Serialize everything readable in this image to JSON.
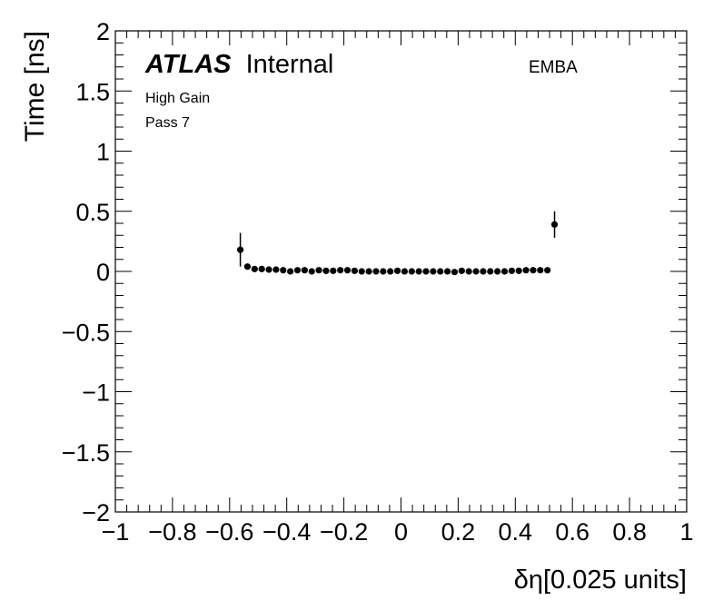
{
  "chart_data": {
    "type": "scatter",
    "ylabel": "Time [ns]",
    "xlabel": "δη[0.025 units]",
    "xlim": [
      -1,
      1
    ],
    "ylim": [
      -2,
      2
    ],
    "x_ticks": [
      "−1",
      "−0.8",
      "−0.6",
      "−0.4",
      "−0.2",
      "0",
      "0.2",
      "0.4",
      "0.6",
      "0.8",
      "1"
    ],
    "y_ticks": [
      "−2",
      "−1.5",
      "−1",
      "−0.5",
      "0",
      "0.5",
      "1",
      "1.5",
      "2"
    ],
    "labels": {
      "atlas": "ATLAS",
      "atlas_status": "Internal",
      "partition": "EMBA",
      "gain": "High Gain",
      "pass": "Pass 7"
    },
    "grid": false,
    "legend": "none",
    "marker_color": "#000000",
    "points": [
      {
        "x": -0.5625,
        "y": 0.18,
        "err": 0.14
      },
      {
        "x": -0.5375,
        "y": 0.04,
        "err": 0.015
      },
      {
        "x": -0.5125,
        "y": 0.02,
        "err": 0.01
      },
      {
        "x": -0.4875,
        "y": 0.02,
        "err": 0.008
      },
      {
        "x": -0.4625,
        "y": 0.015,
        "err": 0.006
      },
      {
        "x": -0.4375,
        "y": 0.015,
        "err": 0.005
      },
      {
        "x": -0.4125,
        "y": 0.01,
        "err": 0.005
      },
      {
        "x": -0.3875,
        "y": 0.0,
        "err": 0.005
      },
      {
        "x": -0.3625,
        "y": 0.01,
        "err": 0.005
      },
      {
        "x": -0.3375,
        "y": 0.01,
        "err": 0.005
      },
      {
        "x": -0.3125,
        "y": 0.0,
        "err": 0.005
      },
      {
        "x": -0.2875,
        "y": 0.01,
        "err": 0.005
      },
      {
        "x": -0.2625,
        "y": 0.005,
        "err": 0.005
      },
      {
        "x": -0.2375,
        "y": 0.005,
        "err": 0.005
      },
      {
        "x": -0.2125,
        "y": 0.01,
        "err": 0.005
      },
      {
        "x": -0.1875,
        "y": 0.01,
        "err": 0.005
      },
      {
        "x": -0.1625,
        "y": 0.005,
        "err": 0.005
      },
      {
        "x": -0.1375,
        "y": 0.0,
        "err": 0.005
      },
      {
        "x": -0.1125,
        "y": 0.0,
        "err": 0.005
      },
      {
        "x": -0.0875,
        "y": 0.0,
        "err": 0.005
      },
      {
        "x": -0.0625,
        "y": 0.0,
        "err": 0.005
      },
      {
        "x": -0.0375,
        "y": 0.0,
        "err": 0.005
      },
      {
        "x": -0.0125,
        "y": 0.005,
        "err": 0.005
      },
      {
        "x": 0.0125,
        "y": 0.0,
        "err": 0.005
      },
      {
        "x": 0.0375,
        "y": 0.0,
        "err": 0.005
      },
      {
        "x": 0.0625,
        "y": 0.0,
        "err": 0.005
      },
      {
        "x": 0.0875,
        "y": 0.0,
        "err": 0.005
      },
      {
        "x": 0.1125,
        "y": 0.0,
        "err": 0.005
      },
      {
        "x": 0.1375,
        "y": 0.0,
        "err": 0.005
      },
      {
        "x": 0.1625,
        "y": 0.0,
        "err": 0.005
      },
      {
        "x": 0.1875,
        "y": -0.005,
        "err": 0.005
      },
      {
        "x": 0.2125,
        "y": 0.005,
        "err": 0.005
      },
      {
        "x": 0.2375,
        "y": 0.0,
        "err": 0.005
      },
      {
        "x": 0.2625,
        "y": 0.0,
        "err": 0.005
      },
      {
        "x": 0.2875,
        "y": 0.0,
        "err": 0.005
      },
      {
        "x": 0.3125,
        "y": 0.0,
        "err": 0.005
      },
      {
        "x": 0.3375,
        "y": 0.0,
        "err": 0.005
      },
      {
        "x": 0.3625,
        "y": 0.0,
        "err": 0.005
      },
      {
        "x": 0.3875,
        "y": 0.005,
        "err": 0.005
      },
      {
        "x": 0.4125,
        "y": 0.005,
        "err": 0.005
      },
      {
        "x": 0.4375,
        "y": 0.01,
        "err": 0.005
      },
      {
        "x": 0.4625,
        "y": 0.01,
        "err": 0.005
      },
      {
        "x": 0.4875,
        "y": 0.01,
        "err": 0.006
      },
      {
        "x": 0.5125,
        "y": 0.01,
        "err": 0.008
      },
      {
        "x": 0.5375,
        "y": 0.39,
        "err": 0.11
      }
    ]
  }
}
